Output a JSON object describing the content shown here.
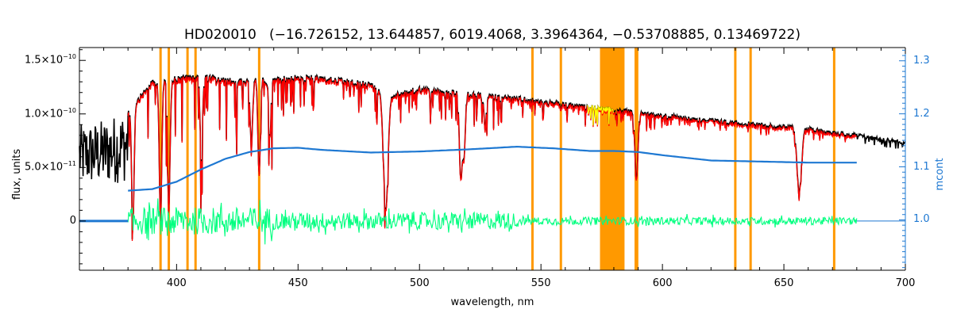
{
  "chart_data": {
    "type": "line",
    "title": "HD020010   (−16.726152, 13.644857, 6019.4068, 3.3964364, −0.53708885, 0.13469722)",
    "xlabel": "wavelength, nm",
    "ylabel": "flux, units",
    "y2label": "mcont",
    "xlim": [
      360,
      700
    ],
    "ylim": [
      -4.6e-11,
      1.62e-10
    ],
    "y2lim": [
      0.905,
      1.325
    ],
    "x_ticks": [
      400,
      450,
      500,
      550,
      600,
      650,
      700
    ],
    "x_tick_labels": [
      "400",
      "450",
      "500",
      "550",
      "600",
      "650",
      "700"
    ],
    "y_ticks": [
      0,
      5e-11,
      1e-10,
      1.5e-10
    ],
    "y_tick_labels": [
      {
        "mant": "0",
        "exp": ""
      },
      {
        "mant": "5.0×10",
        "exp": "−11"
      },
      {
        "mant": "1.0×10",
        "exp": "−10"
      },
      {
        "mant": "1.5×10",
        "exp": "−10"
      }
    ],
    "y2_ticks": [
      1.0,
      1.1,
      1.2,
      1.3
    ],
    "y2_tick_labels": [
      "1.0",
      "1.1",
      "1.2",
      "1.3"
    ],
    "colors": {
      "observed": "#000000",
      "model": "#ff0000",
      "highlight": "#ffff00",
      "residuals": "#00ff7f",
      "continuum": "#1e78d2",
      "masks": "#ff9900",
      "zero_line": "#1e78d2"
    },
    "mask_lines": [
      393.4,
      396.8,
      404.5,
      407.8,
      434.0,
      546.5,
      558.2,
      589.0,
      589.6,
      630.0,
      636.3,
      670.7
    ],
    "mask_band": [
      574.3,
      584.4
    ],
    "observed_anchors": {
      "x": [
        360,
        370,
        380,
        390,
        400,
        410,
        420,
        430,
        440,
        450,
        460,
        480,
        486,
        500,
        520,
        540,
        560,
        580,
        600,
        620,
        640,
        660,
        680,
        700
      ],
      "y": [
        9e-11,
        9.5e-11,
        1.05e-10,
        1.32e-10,
        1.36e-10,
        1.38e-10,
        1.34e-10,
        1.33e-10,
        1.35e-10,
        1.37e-10,
        1.36e-10,
        1.3e-10,
        1.18e-10,
        1.26e-10,
        1.21e-10,
        1.17e-10,
        1.11e-10,
        1.06e-10,
        1.01e-10,
        9.6e-11,
        9.2e-11,
        8.8e-11,
        8.2e-11,
        7.5e-11
      ]
    },
    "deep_lines": [
      {
        "x": 382.0,
        "depth": 1.1e-10
      },
      {
        "x": 393.4,
        "depth": 1.3e-10
      },
      {
        "x": 396.8,
        "depth": 1.2e-10
      },
      {
        "x": 410.2,
        "depth": 7.5e-11
      },
      {
        "x": 430.8,
        "depth": 6e-11
      },
      {
        "x": 434.0,
        "depth": 8.5e-11
      },
      {
        "x": 438.4,
        "depth": 5e-11
      },
      {
        "x": 486.1,
        "depth": 1.05e-10
      },
      {
        "x": 516.7,
        "depth": 4.5e-11
      },
      {
        "x": 517.3,
        "depth": 5e-11
      },
      {
        "x": 518.4,
        "depth": 5.5e-11
      },
      {
        "x": 527.0,
        "depth": 3e-11
      },
      {
        "x": 589.0,
        "depth": 4e-11
      },
      {
        "x": 589.6,
        "depth": 3.6e-11
      },
      {
        "x": 656.3,
        "depth": 6e-11
      }
    ],
    "continuum_anchors": {
      "x": [
        380,
        390,
        400,
        410,
        420,
        430,
        440,
        450,
        460,
        480,
        500,
        520,
        540,
        555,
        570,
        580,
        590,
        600,
        620,
        640,
        660,
        680
      ],
      "y": [
        1.055,
        1.058,
        1.072,
        1.095,
        1.115,
        1.128,
        1.135,
        1.136,
        1.132,
        1.127,
        1.129,
        1.133,
        1.138,
        1.135,
        1.13,
        1.13,
        1.128,
        1.122,
        1.112,
        1.11,
        1.108,
        1.108
      ]
    },
    "residual_amplitude": 8e-12,
    "residual_range": [
      380,
      680
    ]
  }
}
